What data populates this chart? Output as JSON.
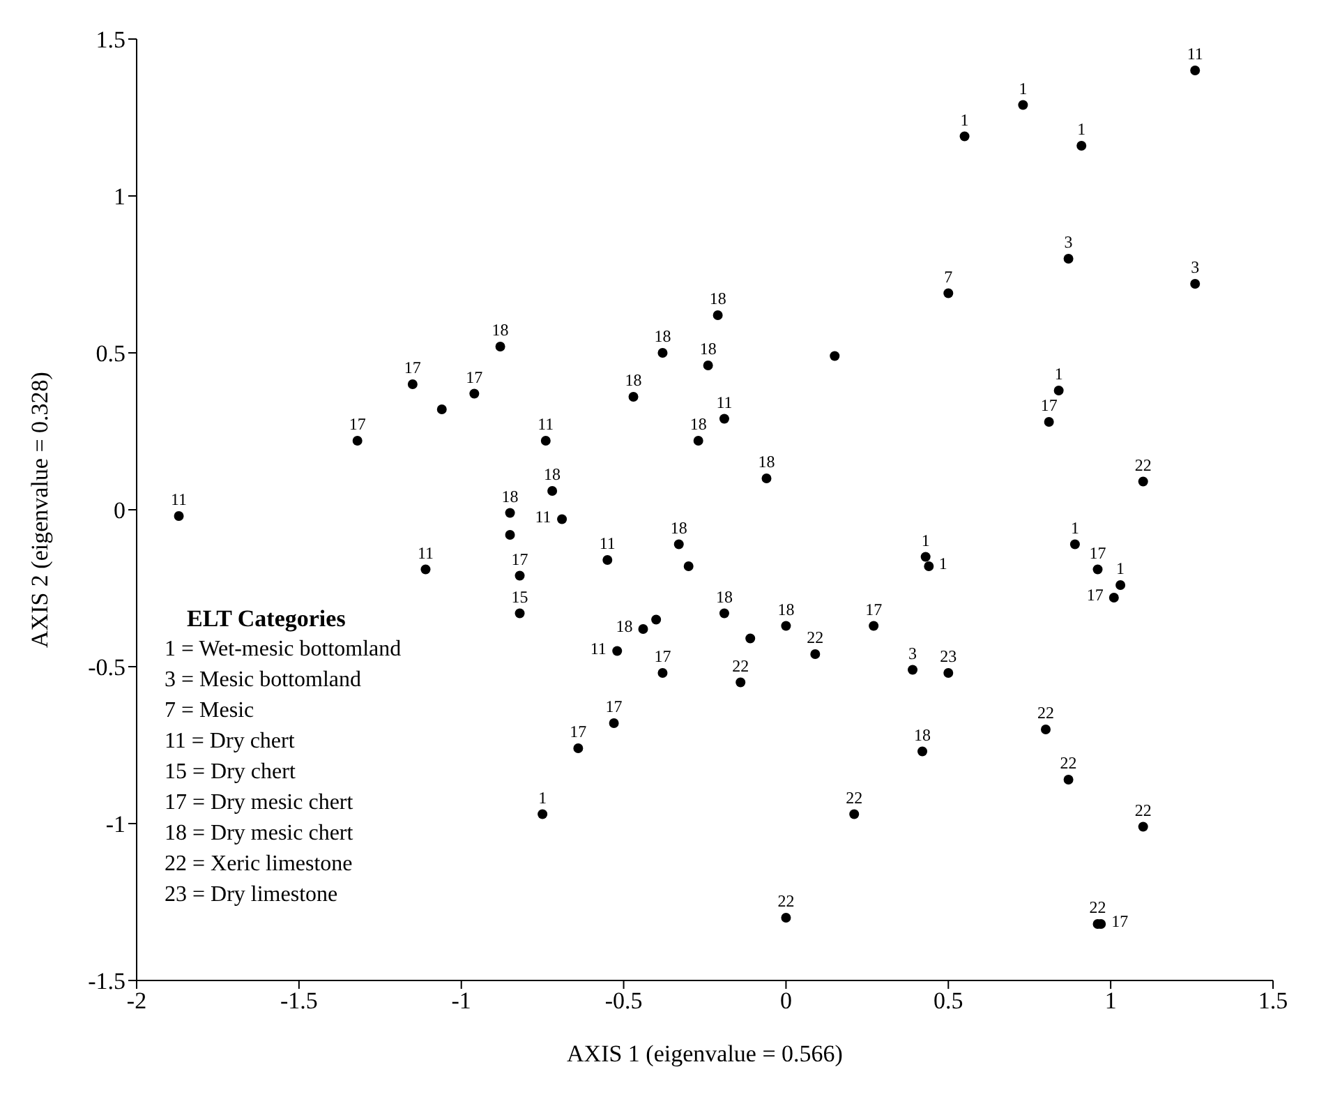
{
  "chart_data": {
    "type": "scatter",
    "xlabel": "AXIS 1 (eigenvalue = 0.566)",
    "ylabel": "AXIS 2  (eigenvalue = 0.328)",
    "xlim": [
      -2,
      1.5
    ],
    "ylim": [
      -1.5,
      1.5
    ],
    "xticks": [
      -2,
      -1.5,
      -1,
      -0.5,
      0,
      0.5,
      1,
      1.5
    ],
    "yticks": [
      -1.5,
      -1,
      -0.5,
      0,
      0.5,
      1,
      1.5
    ],
    "marker": "circle",
    "annotations": [
      "ELT Categories",
      "1 = Wet-mesic bottomland",
      "3 = Mesic bottomland",
      "7 = Mesic",
      "11 = Dry chert",
      "15 = Dry chert",
      "17 = Dry mesic chert",
      "18 = Dry mesic chert",
      "22 = Xeric limestone",
      "23 = Dry limestone",
      {
        "text": "11",
        "x": -1.87,
        "y": -0.02
      },
      {
        "text": "17",
        "x": -1.32,
        "y": 0.22
      },
      {
        "text": "17",
        "x": -1.15,
        "y": 0.4
      },
      {
        "text": "17",
        "x": -0.96,
        "y": 0.37
      },
      {
        "text": "18",
        "x": -0.88,
        "y": 0.52
      },
      {
        "text": "11",
        "x": -0.74,
        "y": 0.22
      },
      {
        "text": "18",
        "x": -0.72,
        "y": 0.06
      },
      {
        "text": "11",
        "x": -0.69,
        "y": -0.03
      },
      {
        "text": "18",
        "x": -0.85,
        "y": -0.01
      },
      {
        "text": "17",
        "x": -0.82,
        "y": -0.21
      },
      {
        "text": "15",
        "x": -0.82,
        "y": -0.33
      },
      {
        "text": "11",
        "x": -1.11,
        "y": -0.19
      },
      {
        "text": "11",
        "x": -0.55,
        "y": -0.16
      },
      {
        "text": "18",
        "x": -0.21,
        "y": 0.62
      },
      {
        "text": "18",
        "x": -0.38,
        "y": 0.5
      },
      {
        "text": "18",
        "x": -0.24,
        "y": 0.46
      },
      {
        "text": "18",
        "x": -0.47,
        "y": 0.36
      },
      {
        "text": "11",
        "x": -0.19,
        "y": 0.29
      },
      {
        "text": "18",
        "x": -0.27,
        "y": 0.22
      },
      {
        "text": "18",
        "x": -0.06,
        "y": 0.1
      },
      {
        "text": "7",
        "x": 0.5,
        "y": 0.69
      },
      {
        "text": "18",
        "x": -0.33,
        "y": -0.11
      },
      {
        "text": "1",
        "x": 0.43,
        "y": -0.15
      },
      {
        "text": "1",
        "x": 0.44,
        "y": -0.18
      },
      {
        "text": "11",
        "x": 1.26,
        "y": 1.4
      },
      {
        "text": "1",
        "x": 0.55,
        "y": 1.19
      },
      {
        "text": "1",
        "x": 0.73,
        "y": 1.29
      },
      {
        "text": "1",
        "x": 0.91,
        "y": 1.16
      },
      {
        "text": "3",
        "x": 0.87,
        "y": 0.8
      },
      {
        "text": "3",
        "x": 1.26,
        "y": 0.72
      },
      {
        "text": "1",
        "x": 0.84,
        "y": 0.38
      },
      {
        "text": "17",
        "x": 0.81,
        "y": 0.28
      },
      {
        "text": "22",
        "x": 1.1,
        "y": 0.09
      },
      {
        "text": "1",
        "x": 0.89,
        "y": -0.11
      },
      {
        "text": "17",
        "x": 0.96,
        "y": -0.19
      },
      {
        "text": "1",
        "x": 1.03,
        "y": -0.24
      },
      {
        "text": "17",
        "x": 1.01,
        "y": -0.28
      },
      {
        "text": "18",
        "x": -0.44,
        "y": -0.38
      },
      {
        "text": "11",
        "x": -0.52,
        "y": -0.45
      },
      {
        "text": "17",
        "x": -0.38,
        "y": -0.52
      },
      {
        "text": "18",
        "x": -0.19,
        "y": -0.33
      },
      {
        "text": "22",
        "x": -0.14,
        "y": -0.55
      },
      {
        "text": "18",
        "x": 0.0,
        "y": -0.37
      },
      {
        "text": "22",
        "x": 0.09,
        "y": -0.46
      },
      {
        "text": "17",
        "x": 0.27,
        "y": -0.37
      },
      {
        "text": "3",
        "x": 0.39,
        "y": -0.51
      },
      {
        "text": "23",
        "x": 0.5,
        "y": -0.52
      },
      {
        "text": "18",
        "x": 0.42,
        "y": -0.77
      },
      {
        "text": "22",
        "x": 0.21,
        "y": -0.97
      },
      {
        "text": "17",
        "x": -0.53,
        "y": -0.68
      },
      {
        "text": "17",
        "x": -0.64,
        "y": -0.76
      },
      {
        "text": "1",
        "x": -0.75,
        "y": -0.97
      },
      {
        "text": "22",
        "x": 0.0,
        "y": -1.3
      },
      {
        "text": "22",
        "x": 0.96,
        "y": -1.32
      },
      {
        "text": "17",
        "x": 0.97,
        "y": -1.32
      },
      {
        "text": "22",
        "x": 0.8,
        "y": -0.7
      },
      {
        "text": "22",
        "x": 0.87,
        "y": -0.86
      },
      {
        "text": "22",
        "x": 1.1,
        "y": -1.01
      }
    ],
    "series": [
      {
        "color": "#000000",
        "x": [
          -1.87,
          -1.32,
          -1.15,
          -1.06,
          -0.96,
          -0.88,
          -0.74,
          -0.72,
          -0.69,
          -0.85,
          -0.85,
          -0.82,
          -0.82,
          -1.11,
          -0.55,
          -0.21,
          -0.38,
          -0.24,
          -0.47,
          -0.19,
          -0.27,
          -0.06,
          0.15,
          0.5,
          -0.33,
          -0.3,
          0.43,
          0.44,
          1.26,
          0.55,
          0.73,
          0.91,
          0.87,
          1.26,
          0.84,
          0.81,
          1.1,
          0.89,
          0.96,
          1.03,
          1.01,
          -0.44,
          -0.4,
          -0.52,
          -0.38,
          -0.19,
          -0.11,
          -0.14,
          0.0,
          0.09,
          0.27,
          0.39,
          0.5,
          0.42,
          0.21,
          -0.53,
          -0.64,
          -0.75,
          0.0,
          0.96,
          0.97,
          0.8,
          0.87,
          1.1
        ],
        "values": [
          -0.02,
          0.22,
          0.4,
          0.32,
          0.37,
          0.52,
          0.22,
          0.06,
          -0.03,
          -0.01,
          -0.08,
          -0.21,
          -0.33,
          -0.19,
          -0.16,
          0.62,
          0.5,
          0.46,
          0.36,
          0.29,
          0.22,
          0.1,
          0.49,
          0.69,
          -0.11,
          -0.18,
          -0.15,
          -0.18,
          1.4,
          1.19,
          1.29,
          1.16,
          0.8,
          0.72,
          0.38,
          0.28,
          0.09,
          -0.11,
          -0.19,
          -0.24,
          -0.28,
          -0.38,
          -0.35,
          -0.45,
          -0.52,
          -0.33,
          -0.41,
          -0.55,
          -0.37,
          -0.46,
          -0.37,
          -0.51,
          -0.52,
          -0.77,
          -0.97,
          -0.68,
          -0.76,
          -0.97,
          -1.3,
          -1.32,
          -1.32,
          -0.7,
          -0.86,
          -1.01
        ]
      }
    ]
  }
}
